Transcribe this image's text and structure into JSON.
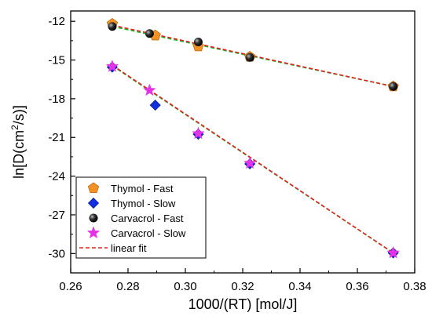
{
  "chart_data": {
    "type": "scatter",
    "xlabel": "1000/(RT) [mol/J]",
    "ylabel": {
      "prefix": "ln[D(cm",
      "sup": "2",
      "suffix": "/s)]"
    },
    "xlim": [
      0.26,
      0.38
    ],
    "ylim": [
      -31.5,
      -11.2
    ],
    "x_ticks": [
      "0.26",
      "0.28",
      "0.30",
      "0.32",
      "0.34",
      "0.36",
      "0.38"
    ],
    "x_tick_values": [
      0.26,
      0.28,
      0.3,
      0.32,
      0.34,
      0.36,
      0.38
    ],
    "y_ticks": [
      "-12",
      "-15",
      "-18",
      "-21",
      "-24",
      "-27",
      "-30"
    ],
    "y_tick_values": [
      -12,
      -15,
      -18,
      -21,
      -24,
      -27,
      -30
    ],
    "grid": false,
    "legend_position": "bottom-left",
    "series": [
      {
        "name": "Thymol - Fast",
        "marker": "pentagon",
        "color": "#f39224",
        "points": [
          [
            0.2745,
            -12.2
          ],
          [
            0.2895,
            -13.1
          ],
          [
            0.3045,
            -13.95
          ],
          [
            0.3225,
            -14.75
          ],
          [
            0.3725,
            -17.05
          ]
        ]
      },
      {
        "name": "Thymol - Slow",
        "marker": "diamond",
        "color": "#1030e0",
        "points": [
          [
            0.2745,
            -15.55
          ],
          [
            0.2895,
            -18.5
          ],
          [
            0.3045,
            -20.75
          ],
          [
            0.3225,
            -23.05
          ],
          [
            0.3725,
            -29.95
          ]
        ]
      },
      {
        "name": "Carvacrol - Fast",
        "marker": "sphere",
        "color": "#111111",
        "points": [
          [
            0.2745,
            -12.4
          ],
          [
            0.2875,
            -12.95
          ],
          [
            0.3045,
            -13.6
          ],
          [
            0.3225,
            -14.8
          ],
          [
            0.3725,
            -17.05
          ]
        ]
      },
      {
        "name": "Carvacrol - Slow",
        "marker": "star",
        "color": "#e632e6",
        "points": [
          [
            0.2745,
            -15.5
          ],
          [
            0.2875,
            -17.35
          ],
          [
            0.3045,
            -20.7
          ],
          [
            0.3225,
            -23.0
          ],
          [
            0.3725,
            -29.95
          ]
        ]
      },
      {
        "name": "linear fit",
        "marker": "dashed-line",
        "color": "#e0201c"
      }
    ],
    "fit_lines": [
      {
        "color": "#1bbd24",
        "from": [
          0.2745,
          -12.4
        ],
        "to": [
          0.3725,
          -17.05
        ]
      },
      {
        "color": "#e0201c",
        "from": [
          0.2745,
          -12.3
        ],
        "to": [
          0.3725,
          -17.05
        ]
      },
      {
        "color": "#1bbd24",
        "from": [
          0.2745,
          -15.45
        ],
        "to": [
          0.3725,
          -29.95
        ]
      },
      {
        "color": "#e0201c",
        "from": [
          0.2745,
          -15.4
        ],
        "to": [
          0.3725,
          -29.95
        ]
      }
    ]
  }
}
